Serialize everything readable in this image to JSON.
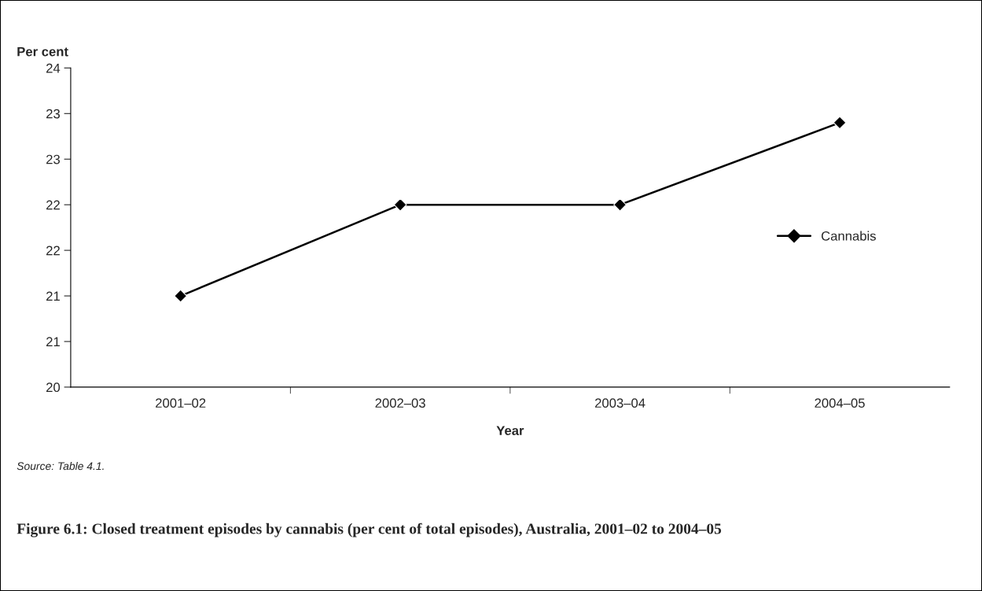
{
  "chart_data": {
    "type": "line",
    "title": "Figure 6.1: Closed treatment episodes by cannabis (per cent of total episodes), Australia, 2001–02 to 2004–05",
    "xlabel": "Year",
    "ylabel": "Per cent",
    "categories": [
      "2001–02",
      "2002–03",
      "2003–04",
      "2004–05"
    ],
    "series": [
      {
        "name": "Cannabis",
        "color": "#000000",
        "values": [
          21.0,
          22.0,
          22.0,
          22.9
        ]
      }
    ],
    "ylim": [
      20,
      23.5
    ],
    "yticks": [
      20,
      {
        "value": 20.5,
        "label": "21"
      },
      21,
      {
        "value": 21.5,
        "label": "22"
      },
      22,
      {
        "value": 22.5,
        "label": "23"
      },
      23,
      {
        "value": 23.5,
        "label": "24"
      }
    ],
    "marker": "diamond",
    "line_style": "solid",
    "grid": false,
    "legend": "right",
    "annotations": [
      "Source: Table 4.1."
    ]
  }
}
